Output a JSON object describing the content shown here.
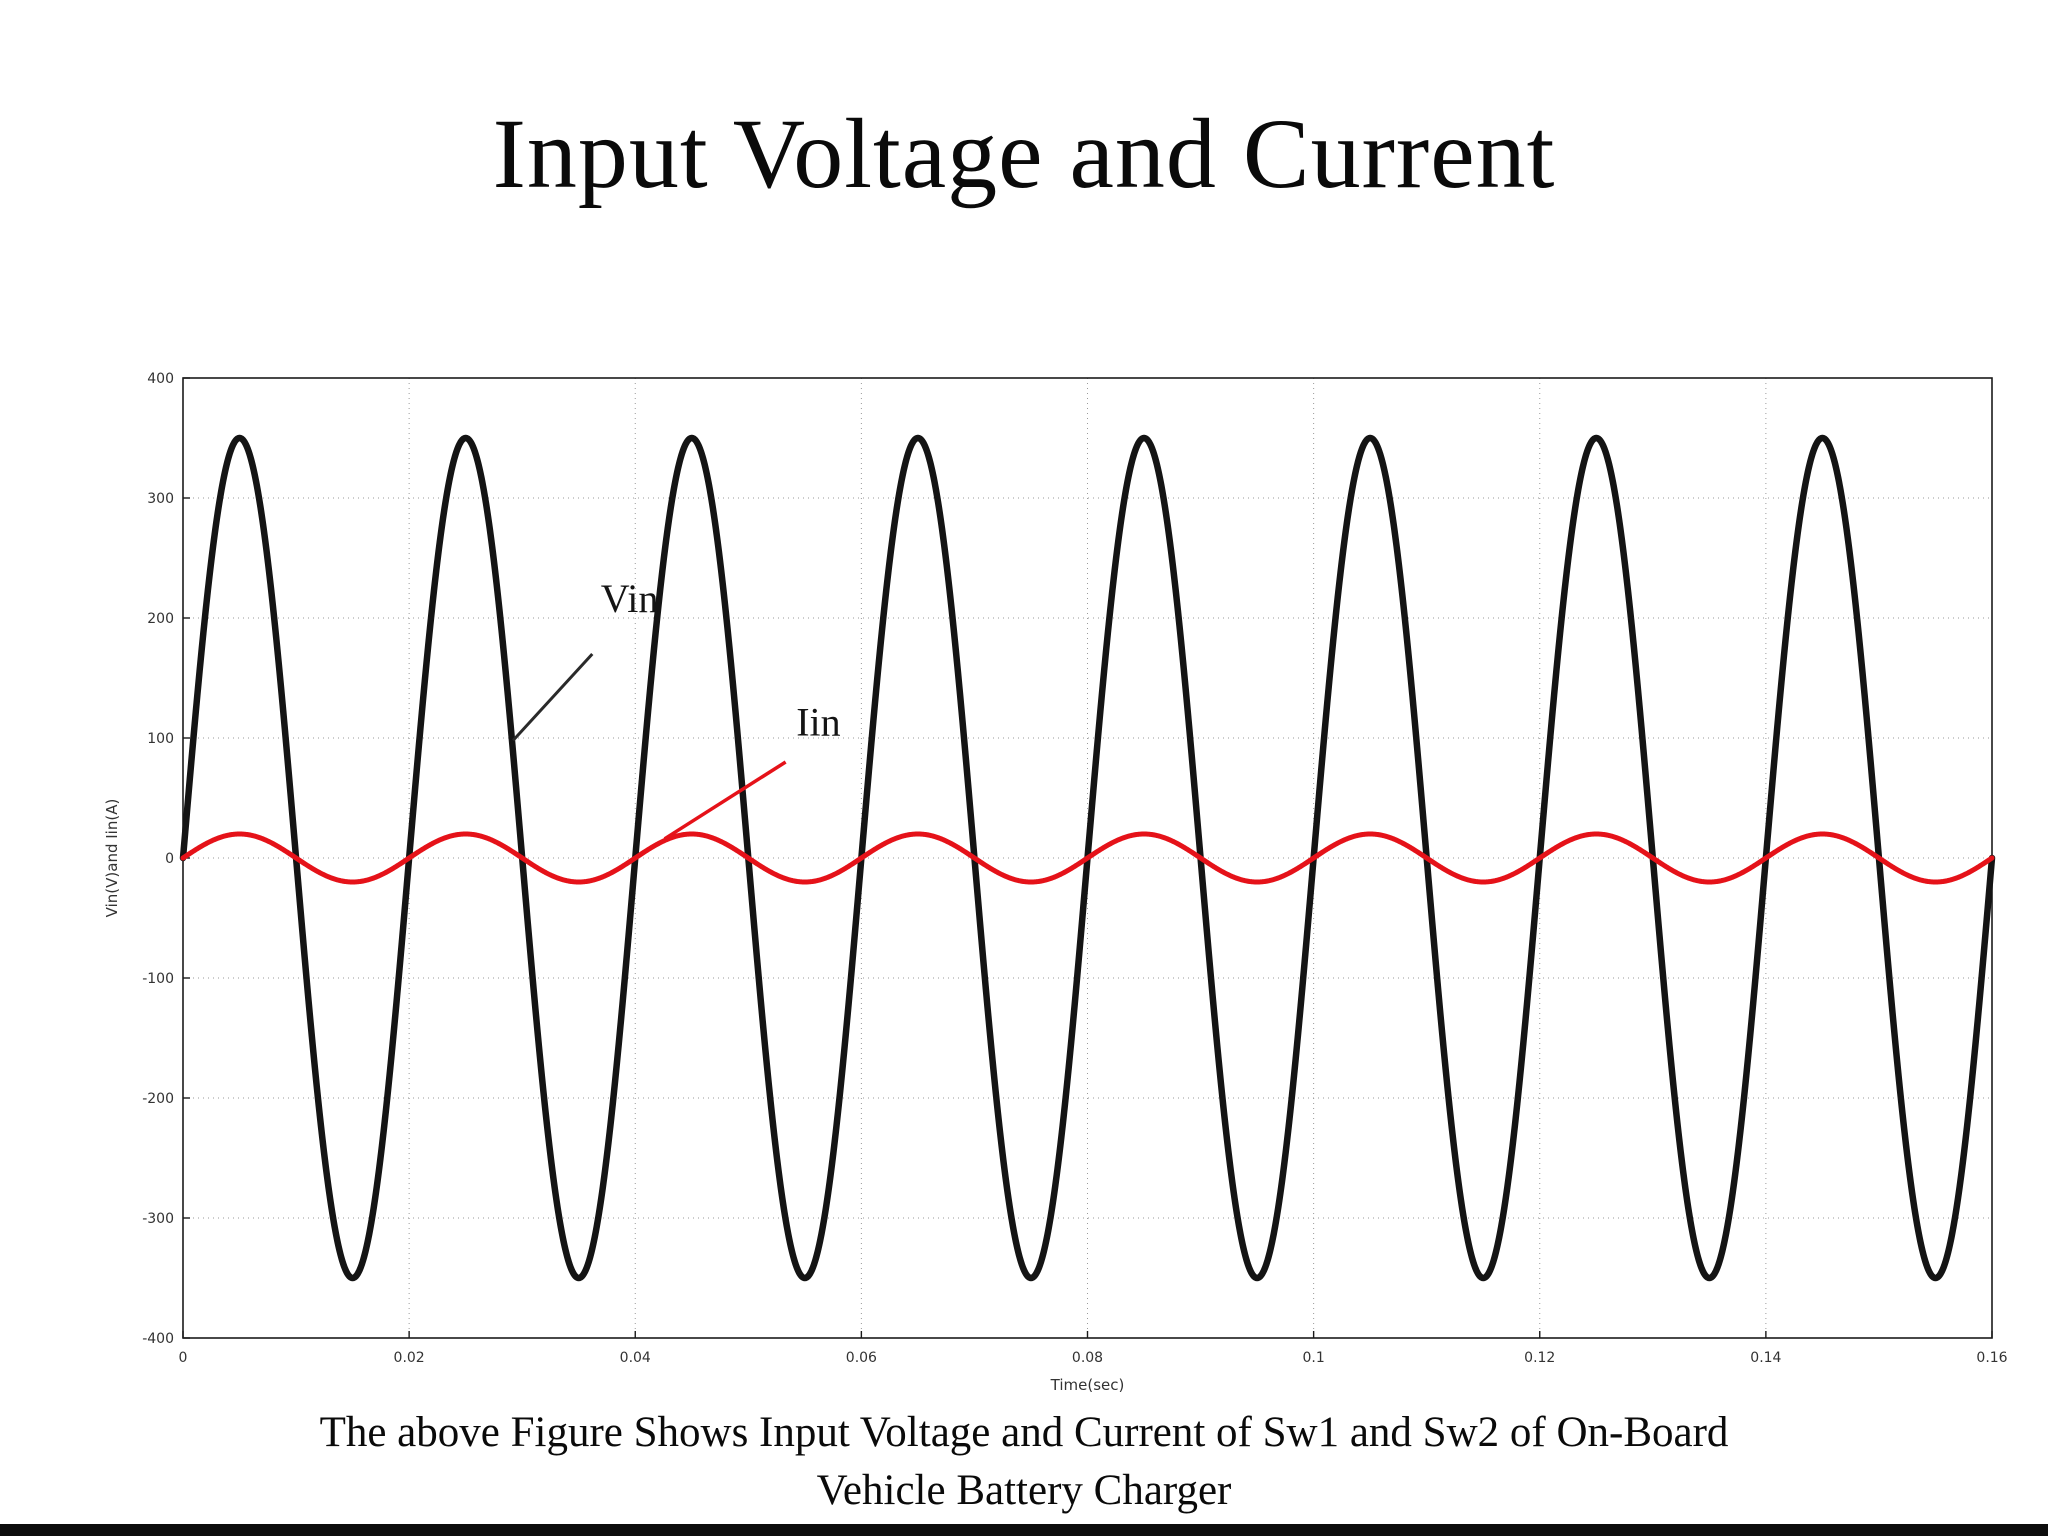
{
  "title": "Input Voltage and Current",
  "caption": {
    "line1": "The above Figure Shows Input Voltage and Current of Sw1 and Sw2 of On-Board",
    "line2": "Vehicle Battery Charger"
  },
  "chart_data": {
    "type": "line",
    "title": "",
    "xlabel": "Time(sec)",
    "ylabel": "Vin(V)and Iin(A)",
    "xlim": [
      0,
      0.16
    ],
    "ylim": [
      -400,
      400
    ],
    "xticks": [
      0,
      0.02,
      0.04,
      0.06,
      0.08,
      0.1,
      0.12,
      0.14,
      0.16
    ],
    "xtick_labels": [
      "0",
      "0.02",
      "0.04",
      "0.06",
      "0.08",
      "0.1",
      "0.12",
      "0.14",
      "0.16"
    ],
    "yticks": [
      400,
      300,
      200,
      100,
      0,
      -100,
      -200,
      -300,
      -400
    ],
    "ytick_labels": [
      "400",
      "300",
      "200",
      "100",
      "0",
      "-100",
      "-200",
      "-300",
      "-400"
    ],
    "grid": "dotted",
    "legend_position": "none",
    "series": [
      {
        "name": "Vin",
        "waveform": "sine",
        "amplitude": 350,
        "frequency_hz": 50,
        "phase_deg": 0,
        "units": "V",
        "color": "#141414",
        "width": 6.5
      },
      {
        "name": "Iin",
        "waveform": "sine",
        "amplitude": 20,
        "frequency_hz": 50,
        "phase_deg": 0,
        "units": "A",
        "color": "#e51219",
        "width": 5
      }
    ],
    "annotations": [
      {
        "label": "Vin",
        "text_x": 0.0395,
        "text_y": 205,
        "text_color": "#141414",
        "line": {
          "x1": 0.0362,
          "y1": 170,
          "x2": 0.0292,
          "y2": 98
        },
        "line_color": "#2a2a2a",
        "line_width": 3
      },
      {
        "label": "Iin",
        "text_x": 0.0562,
        "text_y": 102,
        "text_color": "#141414",
        "line": {
          "x1": 0.0533,
          "y1": 80,
          "x2": 0.0426,
          "y2": 16
        },
        "line_color": "#e51219",
        "line_width": 3.5
      }
    ],
    "colors": {
      "grid": "#9a9a9a",
      "axis_box": "#1a1a1a",
      "tick_text": "#333333"
    }
  }
}
